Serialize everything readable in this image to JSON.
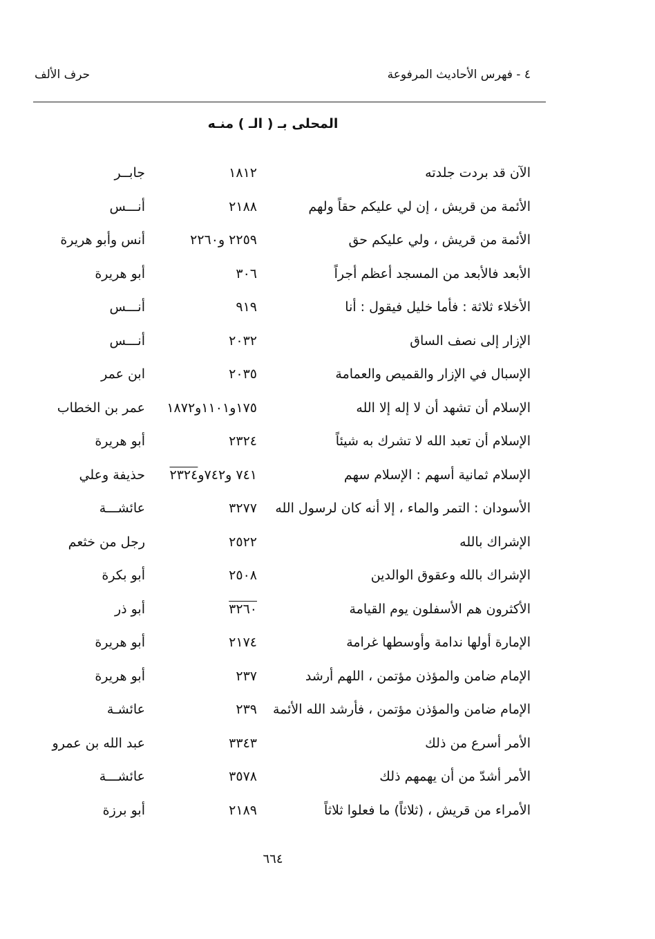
{
  "header": {
    "right": "٤ - فهرس الأحاديث المرفوعة",
    "left": "حرف الألف"
  },
  "section_title": "المحلى بـ ( الـ ) منـه",
  "rows": [
    {
      "hadith": "الآن قد بردت جلدته",
      "number": "١٨١٢",
      "number_overlined": "",
      "narrator": "جابــر"
    },
    {
      "hadith": "الأئمة من قريش ، إن لي عليكم حقاً ولهم",
      "number": "٢١٨٨",
      "number_overlined": "",
      "narrator": "أنـــس"
    },
    {
      "hadith": "الأئمة من قريش ، ولي عليكم حق",
      "number": "٢٢٥٩ و٢٢٦٠",
      "number_overlined": "",
      "narrator": "أنس وأبو هريرة"
    },
    {
      "hadith": "الأبعد فالأبعد من المسجد أعظم أجراً",
      "number": "٣٠٦",
      "number_overlined": "",
      "narrator": "أبو هريرة"
    },
    {
      "hadith": "الأخلاء ثلاثة : فأما خليل فيقول : أنا",
      "number": "٩١٩",
      "number_overlined": "",
      "narrator": "أنـــس"
    },
    {
      "hadith": "الإزار إلى نصف الساق",
      "number": "٢٠٣٢",
      "number_overlined": "",
      "narrator": "أنـــس"
    },
    {
      "hadith": "الإسبال في الإزار والقميص والعمامة",
      "number": "٢٠٣٥",
      "number_overlined": "",
      "narrator": "ابن عمر"
    },
    {
      "hadith": "الإسلام أن تشهد أن لا إله إلا الله",
      "number": "١٧٥و١١٠١و١٨٧٢",
      "number_overlined": "",
      "narrator": "عمر بن الخطاب"
    },
    {
      "hadith": "الإسلام أن تعبد الله لا تشرك به شيئاً",
      "number": "٢٣٢٤",
      "number_overlined": "",
      "narrator": "أبو هريرة"
    },
    {
      "hadith": "الإسلام ثمانية أسهم : الإسلام سهم",
      "number": "٧٤١ و٧٤٢و",
      "number_overlined": "٢٣٢٤",
      "narrator": "حذيفة وعلي"
    },
    {
      "hadith": "الأسودان : التمر والماء ، إلا أنه كان لرسول الله",
      "number": "٣٢٧٧",
      "number_overlined": "",
      "narrator": "عائشـــة"
    },
    {
      "hadith": "الإشراك بالله",
      "number": "٢٥٢٢",
      "number_overlined": "",
      "narrator": "رجل من خثعم"
    },
    {
      "hadith": "الإشراك بالله وعقوق الوالدين",
      "number": "٢٥٠٨",
      "number_overlined": "",
      "narrator": "أبو بكرة"
    },
    {
      "hadith": "الأكثرون هم الأسفلون يوم القيامة",
      "number": "",
      "number_overlined": "٣٢٦٠",
      "narrator": "أبو ذر"
    },
    {
      "hadith": "الإمارة أولها ندامة وأوسطها غرامة",
      "number": "٢١٧٤",
      "number_overlined": "",
      "narrator": "أبو هريرة"
    },
    {
      "hadith": "الإمام ضامن والمؤذن مؤتمن ، اللهم أرشد",
      "number": "٢٣٧",
      "number_overlined": "",
      "narrator": "أبو هريرة"
    },
    {
      "hadith": "الإمام ضامن والمؤذن مؤتمن ، فأرشد الله الأئمة",
      "number": "٢٣٩",
      "number_overlined": "",
      "narrator": "عائشـة"
    },
    {
      "hadith": "الأمر أسرع من ذلك",
      "number": "٣٣٤٣",
      "number_overlined": "",
      "narrator": "عبد الله بن عمرو"
    },
    {
      "hadith": "الأمر أشدّ من أن يهمهم ذلك",
      "number": "٣٥٧٨",
      "number_overlined": "",
      "narrator": "عائشـــة"
    },
    {
      "hadith": "الأمراء من قريش ، (ثلاثاً) ما فعلوا ثلاثاً",
      "number": "٢١٨٩",
      "number_overlined": "",
      "narrator": "أبو برزة"
    }
  ],
  "page_number": "٦٦٤"
}
